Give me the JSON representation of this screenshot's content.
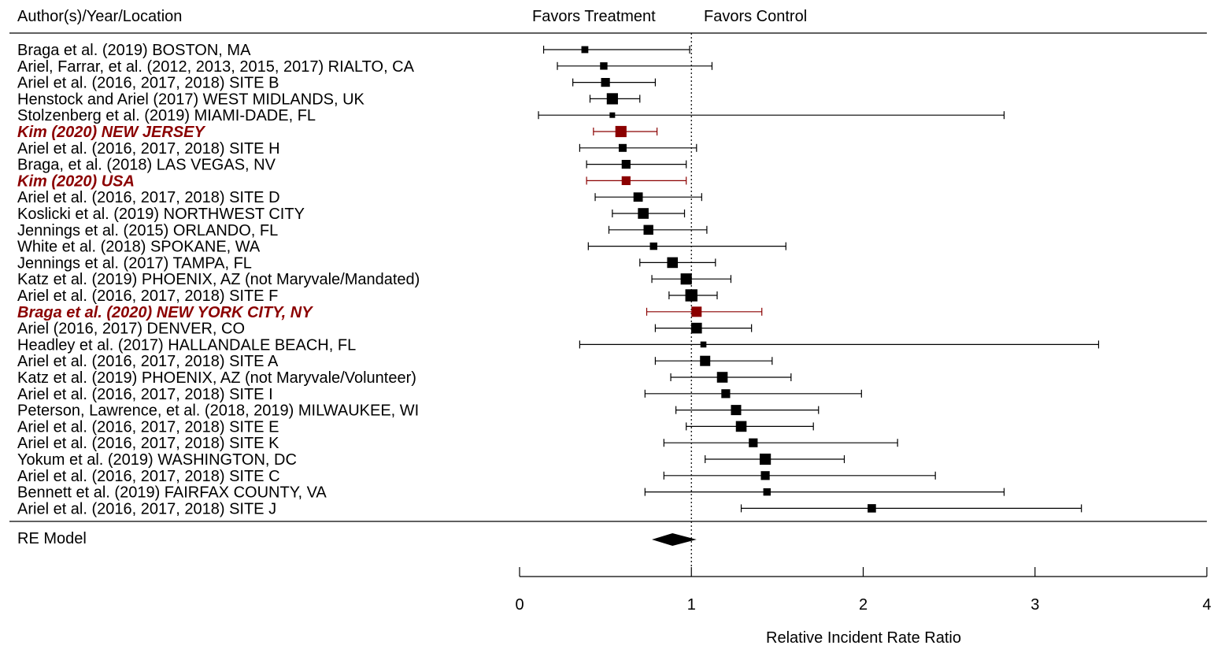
{
  "header": {
    "author_col": "Author(s)/Year/Location",
    "favors_treatment": "Favors Treatment",
    "favors_control": "Favors Control"
  },
  "model_label": "RE Model",
  "colors": {
    "default": "#000000",
    "highlight": "#8b0000"
  },
  "chart_data": {
    "type": "forest",
    "xlabel": "Relative Incident Rate Ratio",
    "xlim": [
      0,
      4
    ],
    "xticks": [
      0,
      1,
      2,
      3,
      4
    ],
    "reference_line": 1,
    "studies": [
      {
        "label": "Braga et al. (2019) BOSTON, MA",
        "est": 0.38,
        "lo": 0.14,
        "hi": 0.99,
        "weight": 0.4,
        "highlight": false
      },
      {
        "label": "Ariel, Farrar, et al. (2012, 2013, 2015, 2017) RIALTO, CA",
        "est": 0.49,
        "lo": 0.22,
        "hi": 1.12,
        "weight": 0.45,
        "highlight": false
      },
      {
        "label": "Ariel et al. (2016, 2017, 2018) SITE B",
        "est": 0.5,
        "lo": 0.31,
        "hi": 0.79,
        "weight": 0.6,
        "highlight": false
      },
      {
        "label": "Henstock and Ariel (2017) WEST MIDLANDS, UK",
        "est": 0.54,
        "lo": 0.41,
        "hi": 0.7,
        "weight": 0.85,
        "highlight": false
      },
      {
        "label": "Stolzenberg et al. (2019) MIAMI-DADE, FL",
        "est": 0.54,
        "lo": 0.11,
        "hi": 2.82,
        "weight": 0.25,
        "highlight": false
      },
      {
        "label": "Kim (2020) NEW JERSEY",
        "est": 0.59,
        "lo": 0.43,
        "hi": 0.8,
        "weight": 0.85,
        "highlight": true
      },
      {
        "label": "Ariel et al. (2016, 2017, 2018) SITE H",
        "est": 0.6,
        "lo": 0.35,
        "hi": 1.03,
        "weight": 0.5,
        "highlight": false
      },
      {
        "label": "Braga, et al. (2018) LAS VEGAS, NV",
        "est": 0.62,
        "lo": 0.39,
        "hi": 0.97,
        "weight": 0.6,
        "highlight": false
      },
      {
        "label": "Kim (2020) USA",
        "est": 0.62,
        "lo": 0.39,
        "hi": 0.97,
        "weight": 0.6,
        "highlight": true
      },
      {
        "label": "Ariel et al. (2016, 2017, 2018) SITE D",
        "est": 0.69,
        "lo": 0.44,
        "hi": 1.06,
        "weight": 0.65,
        "highlight": false
      },
      {
        "label": "Koslicki et al. (2019) NORTHWEST CITY",
        "est": 0.72,
        "lo": 0.54,
        "hi": 0.96,
        "weight": 0.8,
        "highlight": false
      },
      {
        "label": "Jennings et al. (2015) ORLANDO, FL",
        "est": 0.75,
        "lo": 0.52,
        "hi": 1.09,
        "weight": 0.7,
        "highlight": false
      },
      {
        "label": "White et al. (2018) SPOKANE, WA",
        "est": 0.78,
        "lo": 0.4,
        "hi": 1.55,
        "weight": 0.45,
        "highlight": false
      },
      {
        "label": "Jennings et al. (2017) TAMPA, FL",
        "est": 0.89,
        "lo": 0.7,
        "hi": 1.14,
        "weight": 0.8,
        "highlight": false
      },
      {
        "label": "Katz et al. (2019) PHOENIX, AZ (not Maryvale/Mandated)",
        "est": 0.97,
        "lo": 0.77,
        "hi": 1.23,
        "weight": 0.85,
        "highlight": false
      },
      {
        "label": "Ariel et al. (2016, 2017, 2018) SITE F",
        "est": 1.0,
        "lo": 0.87,
        "hi": 1.15,
        "weight": 0.95,
        "highlight": false
      },
      {
        "label": "Braga et al. (2020) NEW YORK CITY, NY",
        "est": 1.03,
        "lo": 0.74,
        "hi": 1.41,
        "weight": 0.75,
        "highlight": true
      },
      {
        "label": "Ariel (2016, 2017) DENVER, CO",
        "est": 1.03,
        "lo": 0.79,
        "hi": 1.35,
        "weight": 0.8,
        "highlight": false
      },
      {
        "label": "Headley et al. (2017) HALLANDALE BEACH, FL",
        "est": 1.07,
        "lo": 0.35,
        "hi": 3.37,
        "weight": 0.3,
        "highlight": false
      },
      {
        "label": "Ariel et al. (2016, 2017, 2018) SITE A",
        "est": 1.08,
        "lo": 0.79,
        "hi": 1.47,
        "weight": 0.75,
        "highlight": false
      },
      {
        "label": "Katz et al. (2019) PHOENIX, AZ (not Maryvale/Volunteer)",
        "est": 1.18,
        "lo": 0.88,
        "hi": 1.58,
        "weight": 0.8,
        "highlight": false
      },
      {
        "label": "Ariel et al. (2016, 2017, 2018) SITE I",
        "est": 1.2,
        "lo": 0.73,
        "hi": 1.99,
        "weight": 0.6,
        "highlight": false
      },
      {
        "label": "Peterson, Lawrence, et al. (2018, 2019) MILWAUKEE, WI",
        "est": 1.26,
        "lo": 0.91,
        "hi": 1.74,
        "weight": 0.75,
        "highlight": false
      },
      {
        "label": "Ariel et al. (2016, 2017, 2018) SITE E",
        "est": 1.29,
        "lo": 0.97,
        "hi": 1.71,
        "weight": 0.8,
        "highlight": false
      },
      {
        "label": "Ariel et al. (2016, 2017, 2018) SITE K",
        "est": 1.36,
        "lo": 0.84,
        "hi": 2.2,
        "weight": 0.6,
        "highlight": false
      },
      {
        "label": "Yokum et al. (2019) WASHINGTON, DC",
        "est": 1.43,
        "lo": 1.08,
        "hi": 1.89,
        "weight": 0.85,
        "highlight": false
      },
      {
        "label": "Ariel et al. (2016, 2017, 2018) SITE C",
        "est": 1.43,
        "lo": 0.84,
        "hi": 2.42,
        "weight": 0.6,
        "highlight": false
      },
      {
        "label": "Bennett et al. (2019) FAIRFAX COUNTY, VA",
        "est": 1.44,
        "lo": 0.73,
        "hi": 2.82,
        "weight": 0.45,
        "highlight": false
      },
      {
        "label": "Ariel et al. (2016, 2017, 2018) SITE J",
        "est": 2.05,
        "lo": 1.29,
        "hi": 3.27,
        "weight": 0.55,
        "highlight": false
      }
    ],
    "summary": {
      "est": 0.89,
      "lo": 0.77,
      "hi": 1.03
    }
  }
}
